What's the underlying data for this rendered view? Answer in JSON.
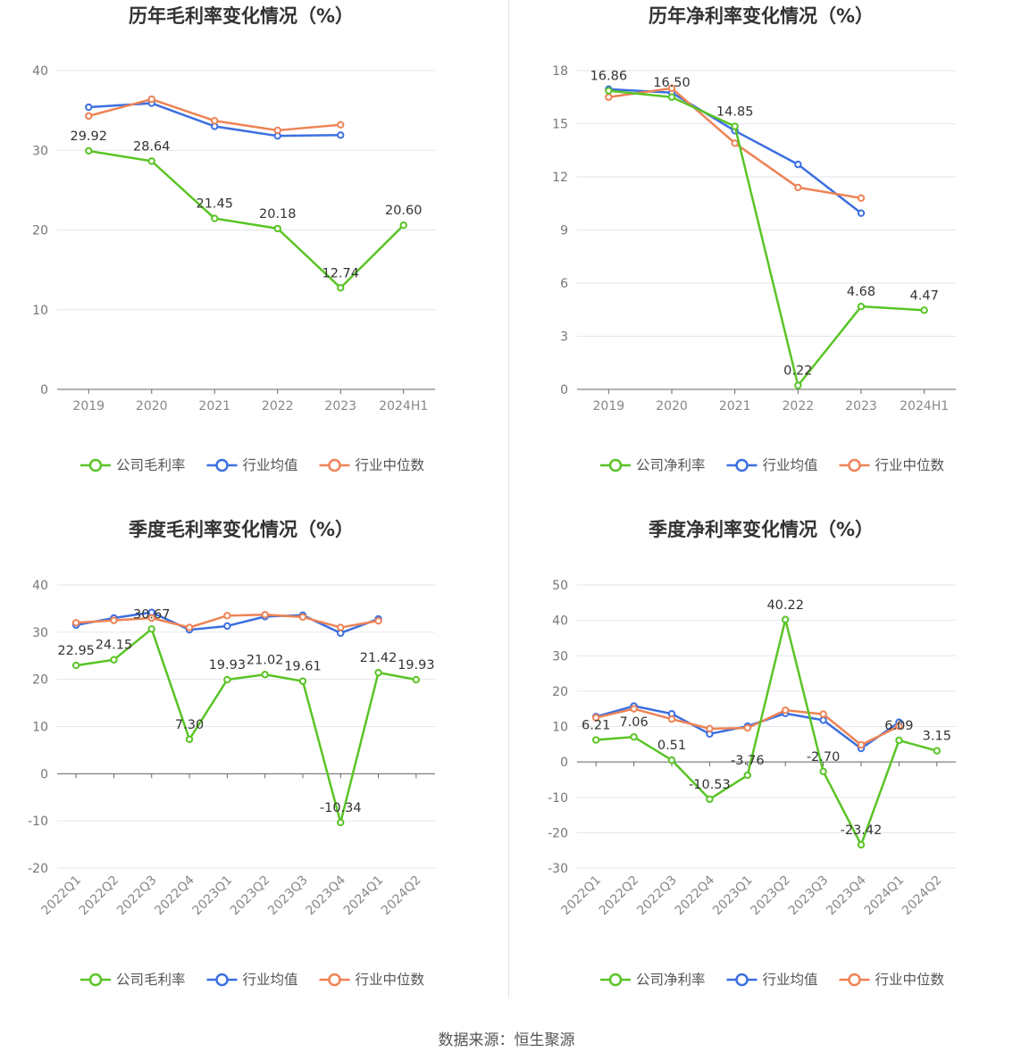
{
  "footer": {
    "source": "数据来源：恒生聚源"
  },
  "colors": {
    "company": "#5ac426",
    "avg": "#3c6fe0",
    "median": "#ee8355"
  },
  "legend_icon": "circle-line-marker",
  "chart_data": [
    {
      "id": "annual-gross",
      "type": "line",
      "title": "历年毛利率变化情况（%）",
      "categories": [
        "2019",
        "2020",
        "2021",
        "2022",
        "2023",
        "2024H1"
      ],
      "ylim": [
        0,
        40
      ],
      "yticks": [
        0,
        10,
        20,
        30,
        40
      ],
      "rotate_labels": false,
      "grid": true,
      "legend_position": "bottom",
      "series": [
        {
          "name": "公司毛利率",
          "role": "company",
          "labels": true,
          "values": [
            29.92,
            28.64,
            21.45,
            20.18,
            12.74,
            20.6
          ],
          "value_labels": [
            "29.92",
            "28.64",
            "21.45",
            "20.18",
            "12.74",
            "20.60"
          ]
        },
        {
          "name": "行业均值",
          "role": "avg",
          "values": [
            35.4,
            35.9,
            33.0,
            31.8,
            31.9,
            null
          ]
        },
        {
          "name": "行业中位数",
          "role": "median",
          "values": [
            34.3,
            36.4,
            33.7,
            32.5,
            33.2,
            null
          ]
        }
      ]
    },
    {
      "id": "annual-net",
      "type": "line",
      "title": "历年净利率变化情况（%）",
      "categories": [
        "2019",
        "2020",
        "2021",
        "2022",
        "2023",
        "2024H1"
      ],
      "ylim": [
        0,
        18
      ],
      "yticks": [
        0,
        3,
        6,
        9,
        12,
        15,
        18
      ],
      "rotate_labels": false,
      "grid": true,
      "legend_position": "bottom",
      "series": [
        {
          "name": "公司净利率",
          "role": "company",
          "labels": true,
          "values": [
            16.86,
            16.5,
            14.85,
            0.22,
            4.68,
            4.47
          ],
          "value_labels": [
            "16.86",
            "16.50",
            "14.85",
            "0.22",
            "4.68",
            "4.47"
          ]
        },
        {
          "name": "行业均值",
          "role": "avg",
          "values": [
            16.95,
            16.75,
            14.6,
            12.7,
            9.95,
            null
          ]
        },
        {
          "name": "行业中位数",
          "role": "median",
          "values": [
            16.5,
            17.0,
            13.9,
            11.4,
            10.8,
            null
          ]
        }
      ]
    },
    {
      "id": "quarterly-gross",
      "type": "line",
      "title": "季度毛利率变化情况（%）",
      "categories": [
        "2022Q1",
        "2022Q2",
        "2022Q3",
        "2022Q4",
        "2023Q1",
        "2023Q2",
        "2023Q3",
        "2023Q4",
        "2024Q1",
        "2024Q2"
      ],
      "ylim": [
        -20,
        40
      ],
      "yticks": [
        -20,
        -10,
        0,
        10,
        20,
        30,
        40
      ],
      "rotate_labels": true,
      "grid": true,
      "legend_position": "bottom",
      "series": [
        {
          "name": "公司毛利率",
          "role": "company",
          "labels": true,
          "values": [
            22.95,
            24.15,
            30.67,
            7.3,
            19.93,
            21.02,
            19.61,
            -10.34,
            21.42,
            19.93
          ],
          "value_labels": [
            "22.95",
            "24.15",
            "30.67",
            "7.30",
            "19.93",
            "21.02",
            "19.61",
            "-10.34",
            "21.42",
            "19.93"
          ]
        },
        {
          "name": "行业均值",
          "role": "avg",
          "values": [
            31.5,
            33.0,
            34.2,
            30.5,
            31.3,
            33.3,
            33.6,
            29.8,
            32.8,
            null
          ]
        },
        {
          "name": "行业中位数",
          "role": "median",
          "values": [
            32.0,
            32.5,
            33.0,
            31.0,
            33.5,
            33.7,
            33.2,
            31.0,
            32.4,
            null
          ]
        }
      ]
    },
    {
      "id": "quarterly-net",
      "type": "line",
      "title": "季度净利率变化情况（%）",
      "categories": [
        "2022Q1",
        "2022Q2",
        "2022Q3",
        "2022Q4",
        "2023Q1",
        "2023Q2",
        "2023Q3",
        "2023Q4",
        "2024Q1",
        "2024Q2"
      ],
      "ylim": [
        -30,
        50
      ],
      "yticks": [
        -30,
        -20,
        -10,
        0,
        10,
        20,
        30,
        40,
        50
      ],
      "rotate_labels": true,
      "grid": true,
      "legend_position": "bottom",
      "series": [
        {
          "name": "公司净利率",
          "role": "company",
          "labels": true,
          "values": [
            6.21,
            7.06,
            0.51,
            -10.53,
            -3.76,
            40.22,
            -2.7,
            -23.42,
            6.09,
            3.15
          ],
          "value_labels": [
            "6.21",
            "7.06",
            "0.51",
            "-10.53",
            "-3.76",
            "40.22",
            "-2.70",
            "-23.42",
            "6.09",
            "3.15"
          ]
        },
        {
          "name": "行业均值",
          "role": "avg",
          "values": [
            12.8,
            15.8,
            13.6,
            7.9,
            10.1,
            13.7,
            11.8,
            3.8,
            11.2,
            null
          ]
        },
        {
          "name": "行业中位数",
          "role": "median",
          "values": [
            12.5,
            15.0,
            12.1,
            9.4,
            9.6,
            14.6,
            13.5,
            4.8,
            10.1,
            null
          ]
        }
      ]
    }
  ]
}
